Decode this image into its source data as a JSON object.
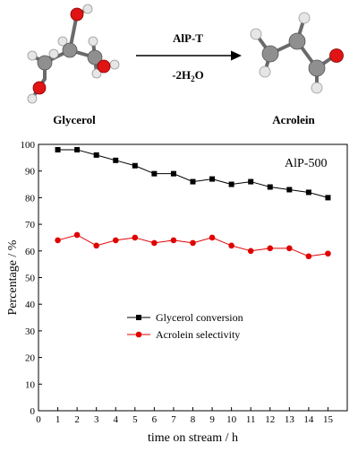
{
  "scheme": {
    "reactant": "Glycerol",
    "product": "Acrolein",
    "catalyst": "AlP-T",
    "byproduct": "-2H",
    "byproduct_sub": "2",
    "byproduct_tail": "O"
  },
  "colors": {
    "carbon": "#8f8f8f",
    "oxygen": "#e01414",
    "hydrogen": "#e8e8e8",
    "series1": "#000000",
    "series2": "#e00000"
  },
  "chart_data": {
    "type": "line",
    "annotation": "AlP-500",
    "xlabel": "time on stream / h",
    "ylabel": "Percentage / %",
    "xlim": [
      0,
      16
    ],
    "ylim": [
      0,
      100
    ],
    "xticks": [
      0,
      1,
      2,
      3,
      4,
      5,
      6,
      7,
      8,
      9,
      10,
      11,
      12,
      13,
      14,
      15
    ],
    "yticks": [
      0,
      10,
      20,
      30,
      40,
      50,
      60,
      70,
      80,
      90,
      100
    ],
    "x": [
      1,
      2,
      3,
      4,
      5,
      6,
      7,
      8,
      9,
      10,
      11,
      12,
      13,
      14,
      15
    ],
    "series": [
      {
        "name": "Glycerol conversion",
        "marker": "square",
        "values": [
          98,
          98,
          96,
          94,
          92,
          89,
          89,
          86,
          87,
          85,
          86,
          84,
          83,
          82,
          80
        ]
      },
      {
        "name": "Acrolein selectivity",
        "marker": "circle",
        "values": [
          64,
          66,
          62,
          64,
          65,
          63,
          64,
          63,
          65,
          62,
          60,
          61,
          61,
          58,
          59
        ]
      }
    ],
    "legend_position": "center-left",
    "grid": false
  }
}
